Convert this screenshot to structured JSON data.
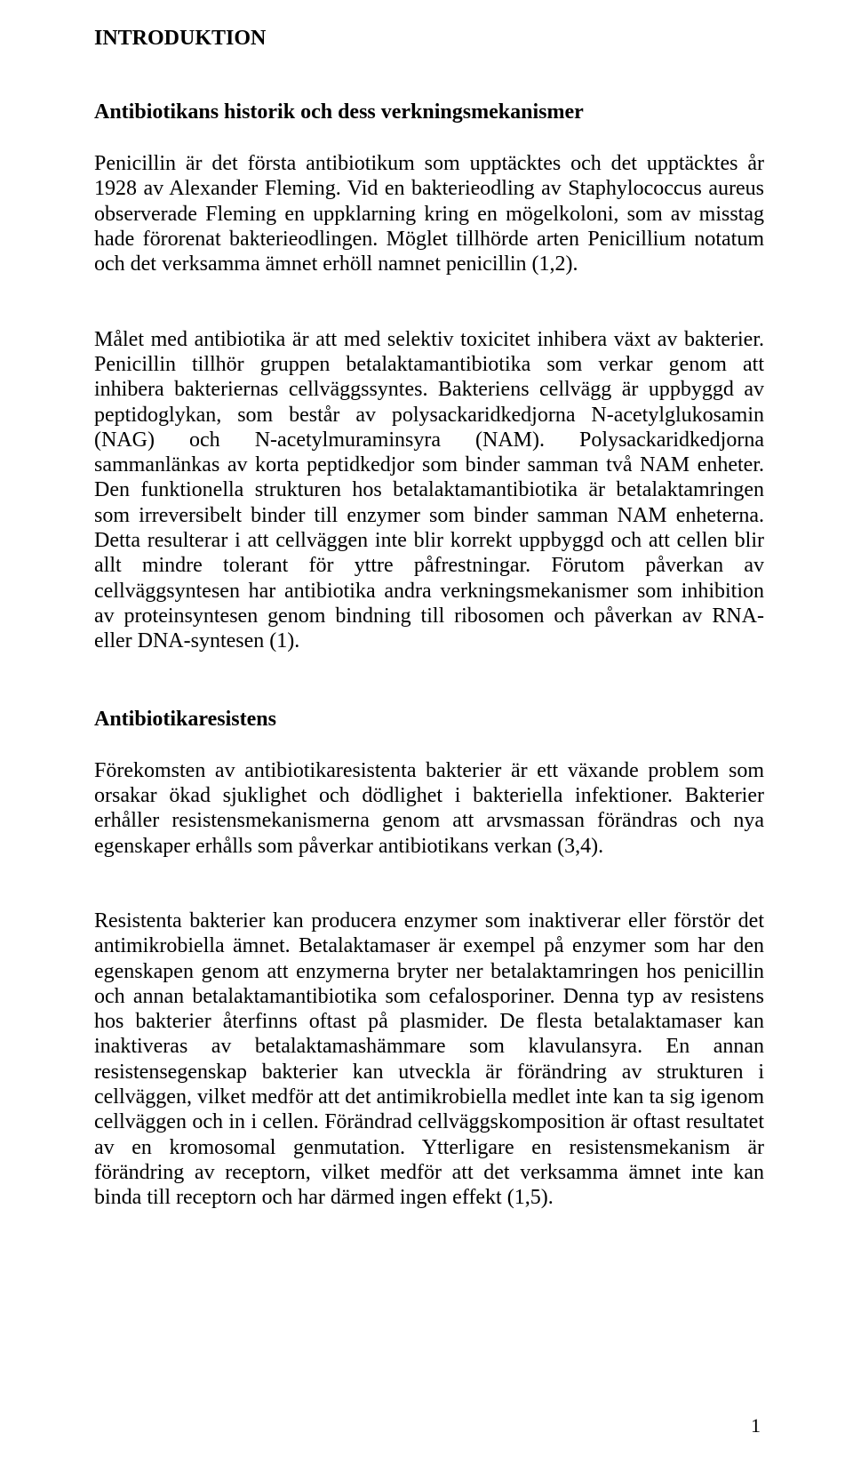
{
  "title_main": "INTRODUKTION",
  "section1": {
    "heading": "Antibiotikans historik och dess verkningsmekanismer",
    "para1": "Penicillin är det första antibiotikum som upptäcktes och det upptäcktes år 1928 av Alexander Fleming. Vid en bakterieodling av Staphylococcus aureus observerade Fleming en uppklarning kring en mögelkoloni, som av misstag hade förorenat bakterieodlingen. Möglet tillhörde arten Penicillium notatum och det verksamma ämnet erhöll namnet penicillin (1,2).",
    "para2": "Målet med antibiotika är att med selektiv toxicitet inhibera växt av bakterier. Penicillin tillhör gruppen betalaktamantibiotika som verkar genom att inhibera bakteriernas cellväggssyntes. Bakteriens cellvägg är uppbyggd av peptidoglykan, som består av polysackaridkedjorna N-acetylglukosamin (NAG) och N-acetylmuraminsyra (NAM). Polysackaridkedjorna sammanlänkas av korta peptidkedjor som binder samman två NAM enheter. Den funktionella strukturen hos betalaktamantibiotika är betalaktamringen som irreversibelt binder till enzymer som binder samman NAM enheterna. Detta resulterar i att cellväggen inte blir korrekt uppbyggd och att cellen blir allt mindre tolerant för yttre påfrestningar. Förutom påverkan av cellväggsyntesen har antibiotika andra verkningsmekanismer som inhibition av proteinsyntesen genom bindning till ribosomen och påverkan av RNA- eller DNA-syntesen (1)."
  },
  "section2": {
    "heading": "Antibiotikaresistens",
    "para1": "Förekomsten av antibiotikaresistenta bakterier är ett växande problem som orsakar ökad sjuklighet och dödlighet i bakteriella infektioner. Bakterier erhåller resistensmekanismerna genom att arvsmassan förändras och nya egenskaper erhålls som påverkar antibiotikans verkan (3,4).",
    "para2": "Resistenta bakterier kan producera enzymer som inaktiverar eller förstör det antimikrobiella ämnet. Betalaktamaser är exempel på enzymer som har den egenskapen genom att enzymerna bryter ner betalaktamringen hos penicillin och annan betalaktamantibiotika som cefalosporiner. Denna typ av resistens hos bakterier återfinns oftast på plasmider. De flesta betalaktamaser kan inaktiveras av betalaktamashämmare som klavulansyra. En annan resistensegenskap bakterier kan utveckla är förändring av strukturen i cellväggen, vilket medför att det antimikrobiella medlet inte kan ta sig igenom cellväggen och in i cellen. Förändrad cellväggskomposition är oftast resultatet av en kromosomal genmutation. Ytterligare en resistensmekanism är förändring av receptorn, vilket medför att det verksamma ämnet inte kan binda till receptorn och har därmed ingen effekt (1,5)."
  },
  "page_number": "1"
}
